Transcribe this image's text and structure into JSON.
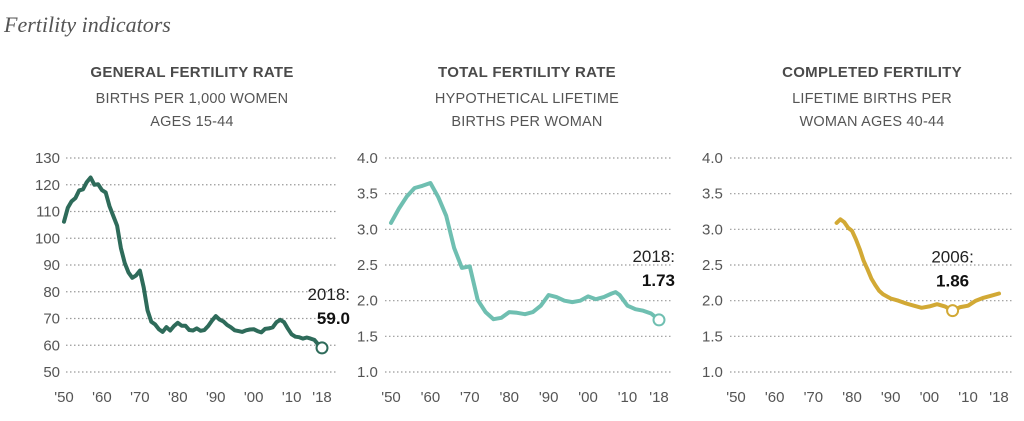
{
  "page": {
    "title": "Fertility indicators"
  },
  "chart_data": [
    {
      "type": "line",
      "title": "GENERAL FERTILITY RATE",
      "subtitle_lines": [
        "BIRTHS PER 1,000 WOMEN",
        "AGES 15-44"
      ],
      "color": "#2e6b5a",
      "ylim": [
        50,
        130
      ],
      "yticks": [
        50,
        60,
        70,
        80,
        90,
        100,
        110,
        120,
        130
      ],
      "ytick_labels": [
        "50",
        "60",
        "70",
        "80",
        "90",
        "100",
        "110",
        "120",
        "130"
      ],
      "xlim": [
        1950,
        2018
      ],
      "xticks": [
        1950,
        1960,
        1970,
        1980,
        1990,
        2000,
        2010,
        2018
      ],
      "xtick_labels": [
        "'50",
        "'60",
        "'70",
        "'80",
        "'90",
        "'00",
        "'10",
        "'18"
      ],
      "grid": true,
      "x": [
        1950,
        1951,
        1952,
        1953,
        1954,
        1955,
        1956,
        1957,
        1958,
        1959,
        1960,
        1961,
        1962,
        1963,
        1964,
        1965,
        1966,
        1967,
        1968,
        1969,
        1970,
        1971,
        1972,
        1973,
        1974,
        1975,
        1976,
        1977,
        1978,
        1979,
        1980,
        1981,
        1982,
        1983,
        1984,
        1985,
        1986,
        1987,
        1988,
        1989,
        1990,
        1991,
        1992,
        1993,
        1994,
        1995,
        1996,
        1997,
        1998,
        1999,
        2000,
        2001,
        2002,
        2003,
        2004,
        2005,
        2006,
        2007,
        2008,
        2009,
        2010,
        2011,
        2012,
        2013,
        2014,
        2015,
        2016,
        2017,
        2018
      ],
      "values": [
        106.2,
        111.4,
        113.8,
        115.0,
        117.9,
        118.3,
        121.0,
        122.7,
        120.0,
        120.2,
        118.0,
        117.1,
        112.0,
        108.3,
        104.7,
        96.3,
        90.8,
        87.2,
        85.2,
        86.1,
        87.9,
        81.6,
        73.1,
        68.8,
        67.8,
        66.0,
        65.0,
        66.8,
        65.5,
        67.2,
        68.4,
        67.3,
        67.3,
        65.7,
        65.5,
        66.3,
        65.4,
        65.7,
        67.2,
        69.2,
        70.9,
        69.6,
        68.9,
        67.6,
        66.7,
        65.6,
        65.3,
        65.0,
        65.6,
        65.9,
        66.0,
        65.3,
        64.8,
        66.1,
        66.3,
        66.7,
        68.6,
        69.5,
        68.6,
        66.2,
        64.1,
        63.2,
        63.0,
        62.5,
        62.9,
        62.5,
        62.0,
        60.3,
        59.0
      ],
      "annotation": {
        "label": "2018:",
        "value": "59.0",
        "x": 2018,
        "y": 59.0
      }
    },
    {
      "type": "line",
      "title": "TOTAL FERTILITY RATE",
      "subtitle_lines": [
        "HYPOTHETICAL LIFETIME",
        "BIRTHS PER WOMAN"
      ],
      "color": "#6fbfb1",
      "ylim": [
        1.0,
        4.0
      ],
      "yticks": [
        1.0,
        1.5,
        2.0,
        2.5,
        3.0,
        3.5,
        4.0
      ],
      "ytick_labels": [
        "1.0",
        "1.5",
        "2.0",
        "2.5",
        "3.0",
        "3.5",
        "4.0"
      ],
      "xlim": [
        1950,
        2018
      ],
      "xticks": [
        1950,
        1960,
        1970,
        1980,
        1990,
        2000,
        2010,
        2018
      ],
      "xtick_labels": [
        "'50",
        "'60",
        "'70",
        "'80",
        "'90",
        "'00",
        "'10",
        "'18"
      ],
      "grid": true,
      "x": [
        1950,
        1952,
        1954,
        1956,
        1958,
        1960,
        1962,
        1964,
        1966,
        1968,
        1970,
        1972,
        1974,
        1976,
        1978,
        1980,
        1982,
        1984,
        1986,
        1988,
        1990,
        1992,
        1994,
        1996,
        1998,
        2000,
        2002,
        2004,
        2006,
        2007,
        2008,
        2010,
        2012,
        2014,
        2016,
        2018
      ],
      "values": [
        3.09,
        3.29,
        3.46,
        3.58,
        3.61,
        3.65,
        3.45,
        3.19,
        2.74,
        2.46,
        2.48,
        2.01,
        1.84,
        1.74,
        1.76,
        1.84,
        1.83,
        1.81,
        1.84,
        1.93,
        2.08,
        2.05,
        2.0,
        1.98,
        2.0,
        2.06,
        2.02,
        2.05,
        2.1,
        2.12,
        2.08,
        1.93,
        1.88,
        1.86,
        1.82,
        1.73
      ],
      "annotation": {
        "label": "2018:",
        "value": "1.73",
        "x": 2018,
        "y": 1.73
      }
    },
    {
      "type": "line",
      "title": "COMPLETED FERTILITY",
      "subtitle_lines": [
        "LIFETIME BIRTHS PER",
        "WOMAN AGES 40-44"
      ],
      "color": "#d2a935",
      "ylim": [
        1.0,
        4.0
      ],
      "yticks": [
        1.0,
        1.5,
        2.0,
        2.5,
        3.0,
        3.5,
        4.0
      ],
      "ytick_labels": [
        "1.0",
        "1.5",
        "2.0",
        "2.5",
        "3.0",
        "3.5",
        "4.0"
      ],
      "xlim": [
        1950,
        2018
      ],
      "xticks": [
        1950,
        1960,
        1970,
        1980,
        1990,
        2000,
        2010,
        2018
      ],
      "xtick_labels": [
        "'50",
        "'60",
        "'70",
        "'80",
        "'90",
        "'00",
        "'10",
        "'18"
      ],
      "grid": true,
      "x": [
        1976,
        1977,
        1978,
        1979,
        1980,
        1981,
        1982,
        1983,
        1984,
        1985,
        1986,
        1987,
        1988,
        1990,
        1992,
        1994,
        1996,
        1998,
        2000,
        2002,
        2004,
        2006,
        2008,
        2010,
        2012,
        2014,
        2016,
        2018
      ],
      "values": [
        3.09,
        3.14,
        3.1,
        3.02,
        2.98,
        2.86,
        2.72,
        2.56,
        2.44,
        2.31,
        2.22,
        2.14,
        2.09,
        2.03,
        2.0,
        1.96,
        1.93,
        1.9,
        1.92,
        1.95,
        1.92,
        1.86,
        1.91,
        1.93,
        2.0,
        2.04,
        2.07,
        2.1
      ],
      "annotation": {
        "label": "2006:",
        "value": "1.86",
        "x": 2006,
        "y": 1.86
      }
    }
  ]
}
